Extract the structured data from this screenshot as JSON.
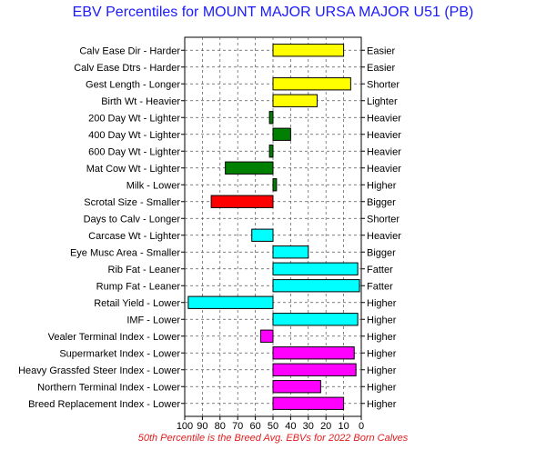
{
  "chart_data": {
    "type": "bar",
    "title": "EBV Percentiles for MOUNT MAJOR URSA MAJOR U51 (PB)",
    "footnote": "50th Percentile is the Breed Avg. EBVs for 2022 Born Calves",
    "xlim": [
      100,
      0
    ],
    "baseline": 50,
    "xticks": [
      "100",
      "90",
      "80",
      "70",
      "60",
      "50",
      "40",
      "30",
      "20",
      "10",
      "0"
    ],
    "grid": true,
    "traits": [
      {
        "left": "Calv Ease Dir - Harder",
        "right": "Easier",
        "value": 10,
        "color": "#ffff00"
      },
      {
        "left": "Calv Ease Dtrs - Harder",
        "right": "Easier",
        "value": 50,
        "color": "#ffff00"
      },
      {
        "left": "Gest Length - Longer",
        "right": "Shorter",
        "value": 6,
        "color": "#ffff00"
      },
      {
        "left": "Birth Wt - Heavier",
        "right": "Lighter",
        "value": 25,
        "color": "#ffff00"
      },
      {
        "left": "200 Day Wt - Lighter",
        "right": "Heavier",
        "value": 52,
        "color": "#008000"
      },
      {
        "left": "400 Day Wt - Lighter",
        "right": "Heavier",
        "value": 40,
        "color": "#008000"
      },
      {
        "left": "600 Day Wt - Lighter",
        "right": "Heavier",
        "value": 52,
        "color": "#008000"
      },
      {
        "left": "Mat Cow Wt - Lighter",
        "right": "Heavier",
        "value": 77,
        "color": "#008000"
      },
      {
        "left": "Milk - Lower",
        "right": "Higher",
        "value": 48,
        "color": "#008000"
      },
      {
        "left": "Scrotal Size - Smaller",
        "right": "Bigger",
        "value": 85,
        "color": "#ff0000"
      },
      {
        "left": "Days to Calv - Longer",
        "right": "Shorter",
        "value": 50,
        "color": "#ff0000"
      },
      {
        "left": "Carcase Wt - Lighter",
        "right": "Heavier",
        "value": 62,
        "color": "#00ffff"
      },
      {
        "left": "Eye Musc Area - Smaller",
        "right": "Bigger",
        "value": 30,
        "color": "#00ffff"
      },
      {
        "left": "Rib Fat - Leaner",
        "right": "Fatter",
        "value": 2,
        "color": "#00ffff"
      },
      {
        "left": "Rump Fat - Leaner",
        "right": "Fatter",
        "value": 1,
        "color": "#00ffff"
      },
      {
        "left": "Retail Yield - Lower",
        "right": "Higher",
        "value": 98,
        "color": "#00ffff"
      },
      {
        "left": "IMF - Lower",
        "right": "Higher",
        "value": 2,
        "color": "#00ffff"
      },
      {
        "left": "Vealer Terminal Index - Lower",
        "right": "Higher",
        "value": 57,
        "color": "#ff00ff"
      },
      {
        "left": "Supermarket Index - Lower",
        "right": "Higher",
        "value": 4,
        "color": "#ff00ff"
      },
      {
        "left": "Heavy Grassfed Steer Index - Lower",
        "right": "Higher",
        "value": 3,
        "color": "#ff00ff"
      },
      {
        "left": "Northern Terminal Index - Lower",
        "right": "Higher",
        "value": 23,
        "color": "#ff00ff"
      },
      {
        "left": "Breed Replacement Index - Lower",
        "right": "Higher",
        "value": 10,
        "color": "#ff00ff"
      }
    ]
  }
}
